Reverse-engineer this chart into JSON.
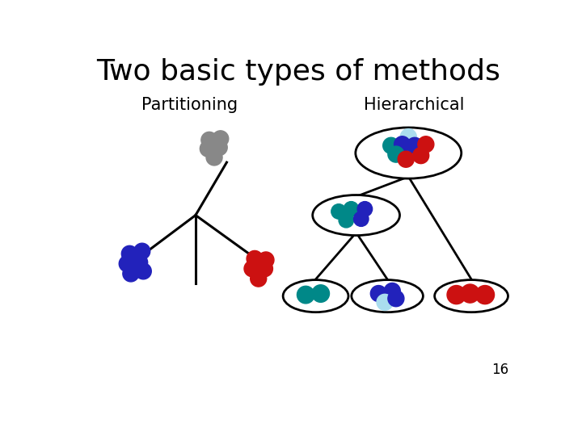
{
  "title": "Two basic types of methods",
  "label_partitioning": "Partitioning",
  "label_hierarchical": "Hierarchical",
  "page_number": "16",
  "colors": {
    "gray": "#888888",
    "blue": "#2222bb",
    "red": "#cc1111",
    "teal": "#008888",
    "lightblue": "#aaddee"
  },
  "title_fontsize": 26,
  "label_fontsize": 15,
  "page_fontsize": 12
}
